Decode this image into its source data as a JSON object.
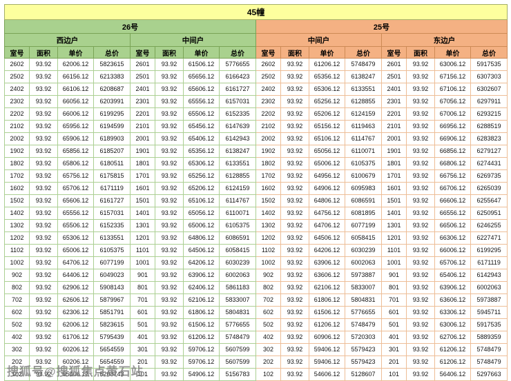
{
  "title": "45幢",
  "watermark": "搜狐号@搜狐焦点黄石站",
  "buildings": [
    {
      "name": "26号",
      "units": [
        "西边户",
        "中间户"
      ]
    },
    {
      "name": "25号",
      "units": [
        "中间户",
        "东边户"
      ]
    }
  ],
  "column_headers": [
    "室号",
    "面积",
    "单价",
    "总价"
  ],
  "rows": [
    [
      "2602",
      "93.92",
      "62006.12",
      "5823615",
      "2601",
      "93.92",
      "61506.12",
      "5776655",
      "2602",
      "93.92",
      "61206.12",
      "5748479",
      "2601",
      "93.92",
      "63006.12",
      "5917535"
    ],
    [
      "2502",
      "93.92",
      "66156.12",
      "6213383",
      "2501",
      "93.92",
      "65656.12",
      "6166423",
      "2502",
      "93.92",
      "65356.12",
      "6138247",
      "2501",
      "93.92",
      "67156.12",
      "6307303"
    ],
    [
      "2402",
      "93.92",
      "66106.12",
      "6208687",
      "2401",
      "93.92",
      "65606.12",
      "6161727",
      "2402",
      "93.92",
      "65306.12",
      "6133551",
      "2401",
      "93.92",
      "67106.12",
      "6302607"
    ],
    [
      "2302",
      "93.92",
      "66056.12",
      "6203991",
      "2301",
      "93.92",
      "65556.12",
      "6157031",
      "2302",
      "93.92",
      "65256.12",
      "6128855",
      "2301",
      "93.92",
      "67056.12",
      "6297911"
    ],
    [
      "2202",
      "93.92",
      "66006.12",
      "6199295",
      "2201",
      "93.92",
      "65506.12",
      "6152335",
      "2202",
      "93.92",
      "65206.12",
      "6124159",
      "2201",
      "93.92",
      "67006.12",
      "6293215"
    ],
    [
      "2102",
      "93.92",
      "65956.12",
      "6194599",
      "2101",
      "93.92",
      "65456.12",
      "6147639",
      "2102",
      "93.92",
      "65156.12",
      "6119463",
      "2101",
      "93.92",
      "66956.12",
      "6288519"
    ],
    [
      "2002",
      "93.92",
      "65906.12",
      "6189903",
      "2001",
      "93.92",
      "65406.12",
      "6142943",
      "2002",
      "93.92",
      "65106.12",
      "6114767",
      "2001",
      "93.92",
      "66906.12",
      "6283823"
    ],
    [
      "1902",
      "93.92",
      "65856.12",
      "6185207",
      "1901",
      "93.92",
      "65356.12",
      "6138247",
      "1902",
      "93.92",
      "65056.12",
      "6110071",
      "1901",
      "93.92",
      "66856.12",
      "6279127"
    ],
    [
      "1802",
      "93.92",
      "65806.12",
      "6180511",
      "1801",
      "93.92",
      "65306.12",
      "6133551",
      "1802",
      "93.92",
      "65006.12",
      "6105375",
      "1801",
      "93.92",
      "66806.12",
      "6274431"
    ],
    [
      "1702",
      "93.92",
      "65756.12",
      "6175815",
      "1701",
      "93.92",
      "65256.12",
      "6128855",
      "1702",
      "93.92",
      "64956.12",
      "6100679",
      "1701",
      "93.92",
      "66756.12",
      "6269735"
    ],
    [
      "1602",
      "93.92",
      "65706.12",
      "6171119",
      "1601",
      "93.92",
      "65206.12",
      "6124159",
      "1602",
      "93.92",
      "64906.12",
      "6095983",
      "1601",
      "93.92",
      "66706.12",
      "6265039"
    ],
    [
      "1502",
      "93.92",
      "65606.12",
      "6161727",
      "1501",
      "93.92",
      "65106.12",
      "6114767",
      "1502",
      "93.92",
      "64806.12",
      "6086591",
      "1501",
      "93.92",
      "66606.12",
      "6255647"
    ],
    [
      "1402",
      "93.92",
      "65556.12",
      "6157031",
      "1401",
      "93.92",
      "65056.12",
      "6110071",
      "1402",
      "93.92",
      "64756.12",
      "6081895",
      "1401",
      "93.92",
      "66556.12",
      "6250951"
    ],
    [
      "1302",
      "93.92",
      "65506.12",
      "6152335",
      "1301",
      "93.92",
      "65006.12",
      "6105375",
      "1302",
      "93.92",
      "64706.12",
      "6077199",
      "1301",
      "93.92",
      "66506.12",
      "6246255"
    ],
    [
      "1202",
      "93.92",
      "65306.12",
      "6133551",
      "1201",
      "93.92",
      "64806.12",
      "6086591",
      "1202",
      "93.92",
      "64506.12",
      "6058415",
      "1201",
      "93.92",
      "66306.12",
      "6227471"
    ],
    [
      "1102",
      "93.92",
      "65006.12",
      "6105375",
      "1101",
      "93.92",
      "64506.12",
      "6058415",
      "1102",
      "93.92",
      "64206.12",
      "6030239",
      "1101",
      "93.92",
      "66006.12",
      "6199295"
    ],
    [
      "1002",
      "93.92",
      "64706.12",
      "6077199",
      "1001",
      "93.92",
      "64206.12",
      "6030239",
      "1002",
      "93.92",
      "63906.12",
      "6002063",
      "1001",
      "93.92",
      "65706.12",
      "6171119"
    ],
    [
      "902",
      "93.92",
      "64406.12",
      "6049023",
      "901",
      "93.92",
      "63906.12",
      "6002063",
      "902",
      "93.92",
      "63606.12",
      "5973887",
      "901",
      "93.92",
      "65406.12",
      "6142943"
    ],
    [
      "802",
      "93.92",
      "62906.12",
      "5908143",
      "801",
      "93.92",
      "62406.12",
      "5861183",
      "802",
      "93.92",
      "62106.12",
      "5833007",
      "801",
      "93.92",
      "63906.12",
      "6002063"
    ],
    [
      "702",
      "93.92",
      "62606.12",
      "5879967",
      "701",
      "93.92",
      "62106.12",
      "5833007",
      "702",
      "93.92",
      "61806.12",
      "5804831",
      "701",
      "93.92",
      "63606.12",
      "5973887"
    ],
    [
      "602",
      "93.92",
      "62306.12",
      "5851791",
      "601",
      "93.92",
      "61806.12",
      "5804831",
      "602",
      "93.92",
      "61506.12",
      "5776655",
      "601",
      "93.92",
      "63306.12",
      "5945711"
    ],
    [
      "502",
      "93.92",
      "62006.12",
      "5823615",
      "501",
      "93.92",
      "61506.12",
      "5776655",
      "502",
      "93.92",
      "61206.12",
      "5748479",
      "501",
      "93.92",
      "63006.12",
      "5917535"
    ],
    [
      "402",
      "93.92",
      "61706.12",
      "5795439",
      "401",
      "93.92",
      "61206.12",
      "5748479",
      "402",
      "93.92",
      "60906.12",
      "5720303",
      "401",
      "93.92",
      "62706.12",
      "5889359"
    ],
    [
      "302",
      "93.92",
      "60206.12",
      "5654559",
      "301",
      "93.92",
      "59706.12",
      "5607599",
      "302",
      "93.92",
      "59406.12",
      "5579423",
      "301",
      "93.92",
      "61206.12",
      "5748479"
    ],
    [
      "202",
      "93.92",
      "60206.12",
      "5654559",
      "201",
      "93.92",
      "59706.12",
      "5607599",
      "202",
      "93.92",
      "59406.12",
      "5579423",
      "201",
      "93.92",
      "61206.12",
      "5748479"
    ],
    [
      "102",
      "93.92",
      "55406.12",
      "5203743",
      "101",
      "93.92",
      "54906.12",
      "5156783",
      "102",
      "93.92",
      "54606.12",
      "5128607",
      "101",
      "93.92",
      "56406.12",
      "5297663"
    ]
  ]
}
